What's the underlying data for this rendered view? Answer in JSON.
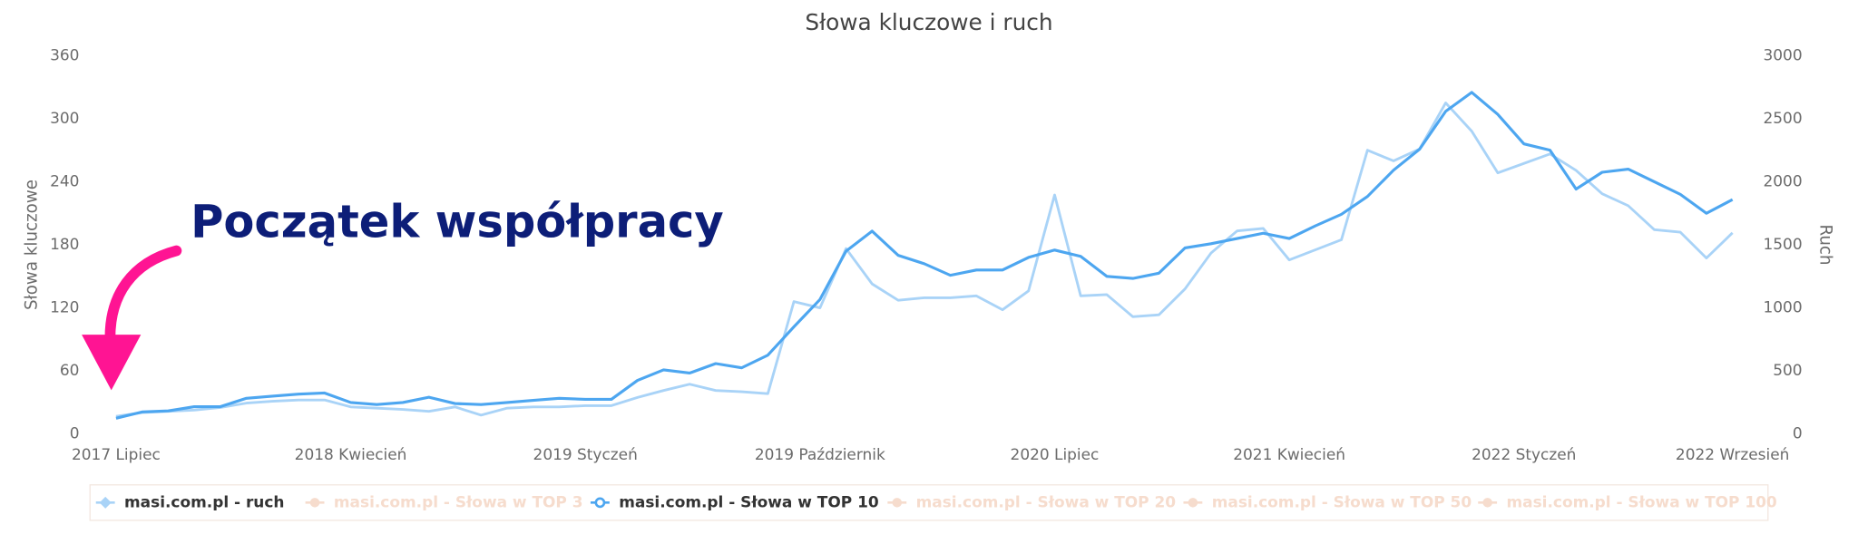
{
  "chart_data": {
    "type": "line",
    "title": "Słowa kluczowe i ruch",
    "ylabel": "Słowa kluczowe",
    "y2label": "Ruch",
    "annotation": "Początek współpracy",
    "categories": [
      "2017 Lipiec",
      null,
      null,
      null,
      null,
      null,
      null,
      null,
      null,
      "2018 Kwiecień",
      null,
      null,
      null,
      null,
      null,
      null,
      null,
      null,
      "2019 Styczeń",
      null,
      null,
      null,
      null,
      null,
      null,
      null,
      null,
      "2019 Październik",
      null,
      null,
      null,
      null,
      null,
      null,
      null,
      null,
      "2020 Lipiec",
      null,
      null,
      null,
      null,
      null,
      null,
      null,
      null,
      "2021 Kwiecień",
      null,
      null,
      null,
      null,
      null,
      null,
      null,
      null,
      "2022 Styczeń",
      null,
      null,
      null,
      null,
      null,
      null,
      null,
      "2022 Wrzesień"
    ],
    "ylim": [
      0,
      360
    ],
    "yticks": [
      0,
      60,
      120,
      180,
      240,
      300,
      360
    ],
    "y2lim": [
      0,
      3000
    ],
    "y2ticks": [
      0,
      500,
      1000,
      1500,
      2000,
      2500,
      3000
    ],
    "series": [
      {
        "name": "masi.com.pl - ruch",
        "color": "#a9d3f7",
        "axis": "y2",
        "marker": "diamond",
        "values": [
          140,
          170,
          180,
          190,
          210,
          245,
          260,
          270,
          270,
          215,
          205,
          195,
          180,
          215,
          150,
          205,
          215,
          215,
          225,
          225,
          290,
          345,
          395,
          345,
          335,
          320,
          1050,
          1000,
          1470,
          1190,
          1060,
          1080,
          1080,
          1095,
          985,
          1135,
          1895,
          1095,
          1105,
          930,
          945,
          1150,
          1435,
          1610,
          1630,
          1380,
          1460,
          1540,
          2250,
          2165,
          2260,
          2625,
          2400,
          2070,
          2145,
          2220,
          2090,
          1905,
          1810,
          1620,
          1600,
          1395,
          1595
        ]
      },
      {
        "name": "masi.com.pl - Słowa w TOP 3",
        "color": "#f6dccd",
        "hidden": true
      },
      {
        "name": "masi.com.pl - Słowa w TOP 10",
        "color": "#4da6f0",
        "marker": "circle",
        "values": [
          15,
          21,
          22,
          26,
          26,
          34,
          36,
          38,
          39,
          30,
          28,
          30,
          35,
          29,
          28,
          30,
          32,
          34,
          33,
          33,
          51,
          61,
          58,
          67,
          63,
          75,
          102,
          128,
          174,
          193,
          170,
          162,
          151,
          156,
          156,
          168,
          175,
          169,
          150,
          148,
          153,
          177,
          181,
          186,
          191,
          186,
          198,
          209,
          226,
          251,
          271,
          307,
          325,
          304,
          276,
          270,
          233,
          249,
          252,
          240,
          228,
          210,
          223
        ]
      },
      {
        "name": "masi.com.pl - Słowa w TOP 20",
        "color": "#f6dccd",
        "hidden": true
      },
      {
        "name": "masi.com.pl - Słowa w TOP 50",
        "color": "#f6dccd",
        "hidden": true
      },
      {
        "name": "masi.com.pl - Słowa w TOP 100",
        "color": "#f6dccd",
        "hidden": true
      }
    ]
  }
}
